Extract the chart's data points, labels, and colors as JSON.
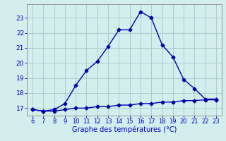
{
  "x_main": [
    6,
    7,
    8,
    9,
    10,
    11,
    12,
    13,
    14,
    15,
    16,
    17,
    18,
    19,
    20,
    21,
    22,
    23
  ],
  "y_main": [
    16.9,
    16.8,
    16.9,
    17.3,
    18.5,
    19.5,
    20.1,
    21.1,
    22.2,
    22.2,
    23.4,
    23.0,
    21.2,
    20.4,
    18.9,
    18.3,
    17.6,
    17.6
  ],
  "x_flat": [
    6,
    7,
    8,
    9,
    10,
    11,
    12,
    13,
    14,
    15,
    16,
    17,
    18,
    19,
    20,
    21,
    22,
    23
  ],
  "y_flat": [
    16.9,
    16.8,
    16.8,
    16.9,
    17.0,
    17.0,
    17.1,
    17.1,
    17.2,
    17.2,
    17.3,
    17.3,
    17.4,
    17.4,
    17.5,
    17.5,
    17.55,
    17.55
  ],
  "line_color": "#0000aa",
  "bg_color": "#d4eeee",
  "grid_color": "#aacccc",
  "xlabel": "Graphe des températures (°C)",
  "xlabel_color": "#0000cc",
  "tick_color": "#0000cc",
  "xlim": [
    5.5,
    23.5
  ],
  "ylim": [
    16.5,
    23.9
  ],
  "xticks": [
    6,
    7,
    8,
    9,
    10,
    11,
    12,
    13,
    14,
    15,
    16,
    17,
    18,
    19,
    20,
    21,
    22,
    23
  ],
  "yticks": [
    17,
    18,
    19,
    20,
    21,
    22,
    23
  ],
  "marker": "D",
  "markersize": 2.5,
  "linewidth": 1.0
}
